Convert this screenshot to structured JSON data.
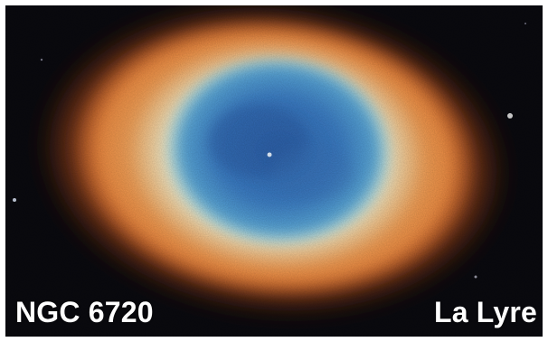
{
  "image": {
    "subject": "ring-nebula",
    "colors": {
      "space": "#0a0a0f",
      "outer_glow": "#d9662a",
      "ring_orange": "#f08a3c",
      "ring_pale": "#f3e7c4",
      "inner_cyan": "#7fd0e6",
      "center_blue": "#3b78c2",
      "center_deep": "#2c5fa8"
    }
  },
  "captions": {
    "left": "NGC 6720",
    "right": "La Lyre"
  }
}
